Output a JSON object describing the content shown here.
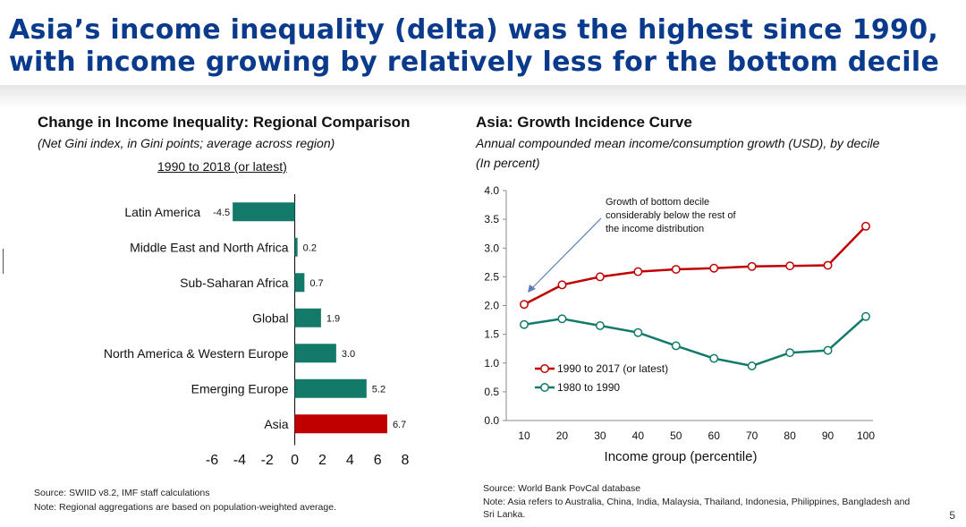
{
  "slide": {
    "title_line1": "Asia’s income inequality (delta) was the highest since 1990,",
    "title_line2": "with income growing by relatively less for the bottom decile",
    "page_number": "5",
    "colors": {
      "title": "#0a3a8c",
      "teal": "#137a6a",
      "red": "#c00000"
    }
  },
  "left_chart": {
    "title": "Change in Income Inequality: Regional Comparison",
    "subtitle": "(Net Gini index, in Gini points; average across region)",
    "period": "1990 to 2018 (or latest)",
    "source": "Source: SWIID v8.2, IMF staff calculations",
    "note": "Note: Regional aggregations are based on population-weighted average."
  },
  "right_chart": {
    "title": "Asia: Growth Incidence Curve",
    "subtitle_line1": "Annual compounded mean income/consumption growth (USD), by decile",
    "subtitle_line2": "(In percent)",
    "source": "Source: World Bank PovCal database",
    "note_line1": "Note: Asia refers to Australia, China, India, Malaysia, Thailand, Indonesia, Philippines, Bangladesh and",
    "note_line2": "Sri Lanka."
  },
  "chart_data": [
    {
      "type": "bar",
      "orientation": "horizontal",
      "categories": [
        "Latin America",
        "Middle East and North Africa",
        "Sub-Saharan Africa",
        "Global",
        "North America & Western Europe",
        "Emerging Europe",
        "Asia"
      ],
      "values": [
        -4.5,
        0.2,
        0.7,
        1.9,
        3.0,
        5.2,
        6.7
      ],
      "value_labels": [
        "-4.5",
        "0.2",
        "0.7",
        "1.9",
        "3.0",
        "5.2",
        "6.7"
      ],
      "bar_colors": [
        "#137a6a",
        "#137a6a",
        "#137a6a",
        "#137a6a",
        "#137a6a",
        "#137a6a",
        "#c00000"
      ],
      "xlim": [
        -6,
        8
      ],
      "xticks": [
        "-6",
        "-4",
        "-2",
        "0",
        "2",
        "4",
        "6",
        "8"
      ],
      "title": "Change in Income Inequality: Regional Comparison"
    },
    {
      "type": "line",
      "title": "Asia: Growth Incidence Curve",
      "xlabel": "Income group (percentile)",
      "x": [
        10,
        20,
        30,
        40,
        50,
        60,
        70,
        80,
        90,
        100
      ],
      "xticks": [
        "10",
        "20",
        "30",
        "40",
        "50",
        "60",
        "70",
        "80",
        "90",
        "100"
      ],
      "ylim": [
        0,
        4
      ],
      "yticks": [
        "0.0",
        "0.5",
        "1.0",
        "1.5",
        "2.0",
        "2.5",
        "3.0",
        "3.5",
        "4.0"
      ],
      "series": [
        {
          "name": "1990 to 2017 (or latest)",
          "color": "#c00000",
          "values": [
            2.02,
            2.36,
            2.5,
            2.59,
            2.63,
            2.65,
            2.68,
            2.69,
            2.7,
            3.38
          ]
        },
        {
          "name": "1980 to 1990",
          "color": "#137a6a",
          "values": [
            1.67,
            1.77,
            1.65,
            1.53,
            1.3,
            1.08,
            0.95,
            1.18,
            1.22,
            1.81
          ]
        }
      ],
      "legend": "bottom-left",
      "annotation_lines": [
        "Growth of bottom decile",
        "considerably below the rest of",
        "the income distribution"
      ]
    }
  ]
}
